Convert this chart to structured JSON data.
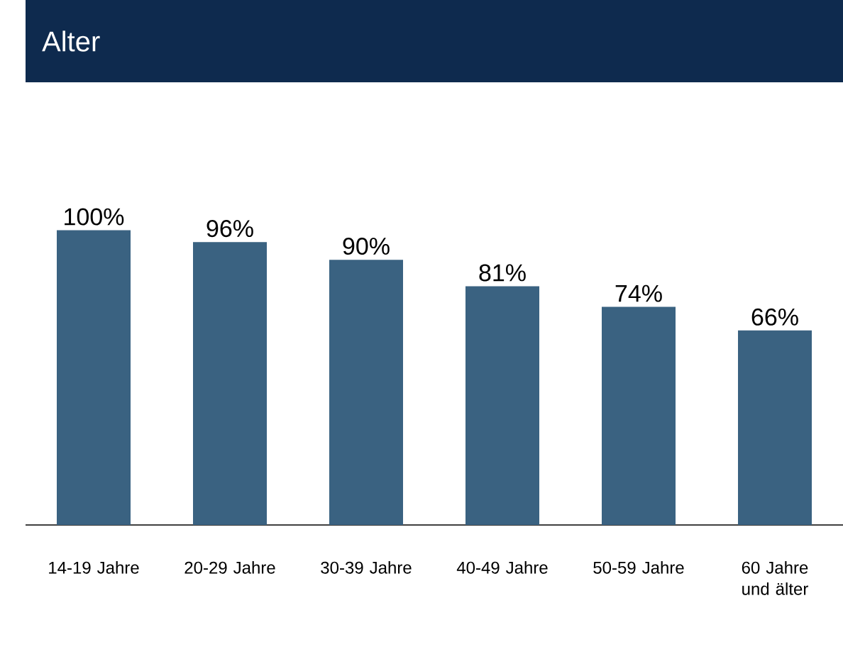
{
  "chart_data": {
    "type": "bar",
    "title": "Alter",
    "categories": [
      "14-19 Jahre",
      "20-29 Jahre",
      "30-39 Jahre",
      "40-49 Jahre",
      "50-59 Jahre",
      "60 Jahre und älter"
    ],
    "values": [
      100,
      96,
      90,
      81,
      74,
      66
    ],
    "value_labels": [
      "100%",
      "96%",
      "90%",
      "81%",
      "74%",
      "66%"
    ],
    "color": "#3a6281"
  }
}
